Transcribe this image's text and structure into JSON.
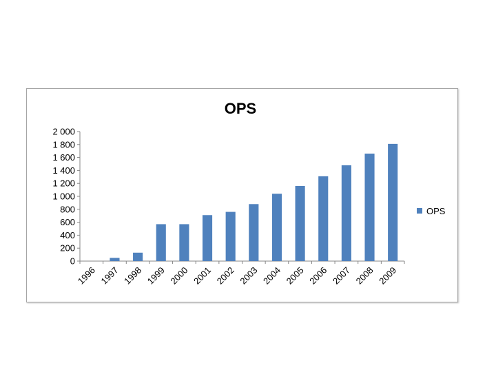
{
  "chart_data": {
    "type": "bar",
    "title": "OPS",
    "xlabel": "",
    "ylabel": "",
    "categories": [
      "1996",
      "1997",
      "1998",
      "1999",
      "2000",
      "2001",
      "2002",
      "2003",
      "2004",
      "2005",
      "2006",
      "2007",
      "2008",
      "2009"
    ],
    "series": [
      {
        "name": "OPS",
        "values": [
          0,
          50,
          130,
          570,
          570,
          710,
          760,
          880,
          1040,
          1160,
          1310,
          1480,
          1660,
          1810
        ]
      }
    ],
    "ylim": [
      0,
      2000
    ],
    "yticks": [
      "0",
      "200",
      "400",
      "600",
      "800",
      "1 000",
      "1 200",
      "1 400",
      "1 600",
      "1 800",
      "2 000"
    ],
    "grid": false,
    "legend": "right",
    "colors": {
      "bar": "#4F81BD"
    }
  }
}
